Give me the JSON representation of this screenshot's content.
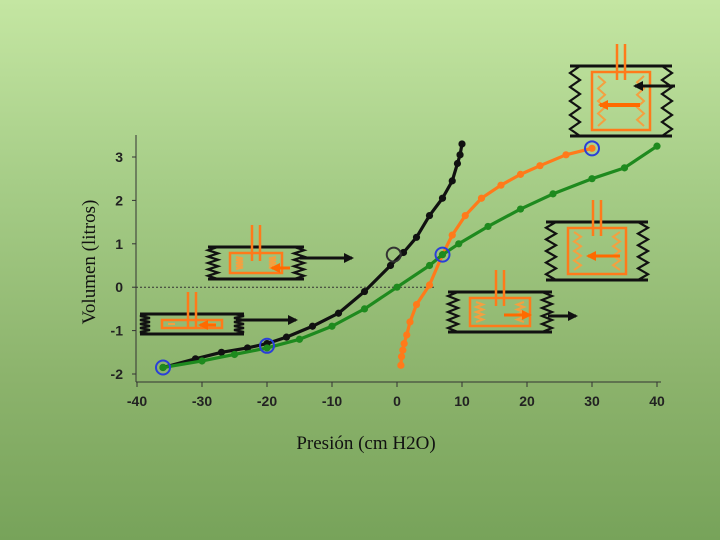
{
  "chart_data": {
    "type": "line",
    "title": "",
    "xlabel": "Presión  (cm H2O)",
    "ylabel": "Volumen  (litros)",
    "xlim": [
      -40,
      40
    ],
    "ylim": [
      -2,
      3
    ],
    "xticks": [
      "-40",
      "-30",
      "-20",
      "-10",
      "0",
      "10",
      "20",
      "30",
      "40"
    ],
    "yticks": [
      "-2",
      "-1",
      "0",
      "1",
      "2",
      "3"
    ],
    "reference_line_y": 0,
    "series": [
      {
        "color": "#111111",
        "x": [
          -36,
          -31,
          -27,
          -23,
          -20,
          -17,
          -13,
          -9,
          -5,
          -1,
          1,
          3,
          5,
          7,
          8.5,
          9.3,
          9.7,
          10
        ],
        "y": [
          -1.85,
          -1.65,
          -1.5,
          -1.4,
          -1.3,
          -1.15,
          -0.9,
          -0.6,
          -0.1,
          0.5,
          0.8,
          1.15,
          1.65,
          2.05,
          2.45,
          2.85,
          3.05,
          3.3
        ]
      },
      {
        "color": "#ff7a1a",
        "x": [
          0.6,
          0.7,
          0.9,
          1.1,
          1.5,
          2,
          3,
          5,
          7,
          8.5,
          10.5,
          13,
          16,
          19,
          22,
          26,
          30
        ],
        "y": [
          -1.8,
          -1.6,
          -1.45,
          -1.3,
          -1.1,
          -0.8,
          -0.4,
          0.05,
          0.75,
          1.2,
          1.65,
          2.05,
          2.35,
          2.6,
          2.8,
          3.05,
          3.2
        ]
      },
      {
        "color": "#1e8a1e",
        "x": [
          -36,
          -30,
          -25,
          -20,
          -15,
          -10,
          -5,
          0,
          5,
          7,
          9.5,
          14,
          19,
          24,
          30,
          35,
          40
        ],
        "y": [
          -1.85,
          -1.7,
          -1.55,
          -1.4,
          -1.2,
          -0.9,
          -0.5,
          0.0,
          0.5,
          0.75,
          1.0,
          1.4,
          1.8,
          2.15,
          2.5,
          2.75,
          3.25
        ]
      }
    ],
    "markers": [
      {
        "x": -36,
        "y": -1.85,
        "color": "#2a3fd8"
      },
      {
        "x": -20,
        "y": -1.35,
        "color": "#2a3fd8"
      },
      {
        "x": -0.5,
        "y": 0.75,
        "color": "#333333"
      },
      {
        "x": 7,
        "y": 0.75,
        "color": "#2a3fd8"
      },
      {
        "x": 30,
        "y": 3.2,
        "color": "#2a3fd8"
      }
    ]
  },
  "diagram": {
    "box_wall_color": "#111111",
    "box_outline_color": "#ff7a1a",
    "lung_fill_color": "#f4a040",
    "arrow_colors": [
      "#ff6a00",
      "#111111"
    ]
  }
}
